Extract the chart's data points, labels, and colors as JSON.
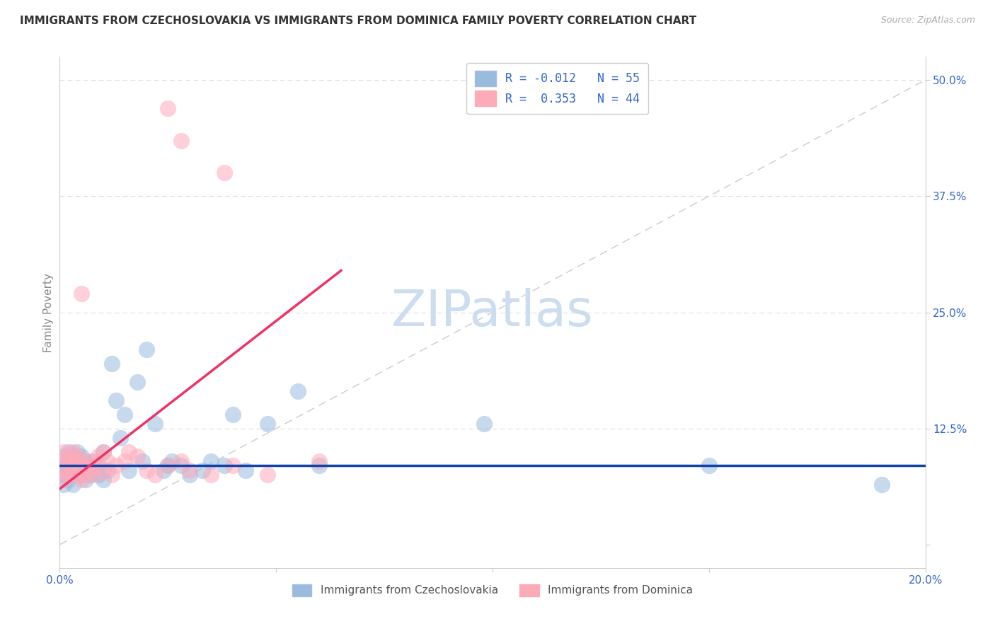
{
  "title": "IMMIGRANTS FROM CZECHOSLOVAKIA VS IMMIGRANTS FROM DOMINICA FAMILY POVERTY CORRELATION CHART",
  "source": "Source: ZipAtlas.com",
  "ylabel": "Family Poverty",
  "xlim": [
    0.0,
    0.2
  ],
  "ylim": [
    -0.025,
    0.525
  ],
  "xticks": [
    0.0,
    0.05,
    0.1,
    0.15,
    0.2
  ],
  "xticklabels": [
    "0.0%",
    "",
    "",
    "",
    "20.0%"
  ],
  "yticks": [
    0.0,
    0.125,
    0.25,
    0.375,
    0.5
  ],
  "yticklabels": [
    "",
    "12.5%",
    "25.0%",
    "37.5%",
    "50.0%"
  ],
  "legend_blue_label": "Immigrants from Czechoslovakia",
  "legend_pink_label": "Immigrants from Dominica",
  "color_blue": "#99BBDD",
  "color_pink": "#FFAABB",
  "line_blue": "#1144AA",
  "line_pink": "#EE3366",
  "diag_color": "#CCCCCC",
  "grid_color": "#DDDDDD",
  "watermark": "ZIPatlas",
  "watermark_color": "#CCDDEF",
  "blue_line_y0": 0.085,
  "blue_line_y1": 0.085,
  "pink_line_x0": 0.0,
  "pink_line_y0": 0.06,
  "pink_line_x1": 0.065,
  "pink_line_y1": 0.295,
  "blue_x": [
    0.001,
    0.001,
    0.001,
    0.001,
    0.002,
    0.002,
    0.002,
    0.002,
    0.003,
    0.003,
    0.003,
    0.003,
    0.004,
    0.004,
    0.004,
    0.005,
    0.005,
    0.005,
    0.006,
    0.006,
    0.006,
    0.007,
    0.007,
    0.008,
    0.008,
    0.009,
    0.009,
    0.01,
    0.01,
    0.011,
    0.012,
    0.013,
    0.014,
    0.015,
    0.016,
    0.018,
    0.019,
    0.02,
    0.022,
    0.024,
    0.025,
    0.026,
    0.028,
    0.03,
    0.033,
    0.035,
    0.038,
    0.04,
    0.043,
    0.048,
    0.055,
    0.06,
    0.098,
    0.15,
    0.19
  ],
  "blue_y": [
    0.085,
    0.075,
    0.095,
    0.065,
    0.08,
    0.09,
    0.07,
    0.1,
    0.085,
    0.075,
    0.095,
    0.065,
    0.08,
    0.09,
    0.1,
    0.085,
    0.075,
    0.095,
    0.07,
    0.08,
    0.09,
    0.085,
    0.075,
    0.08,
    0.09,
    0.085,
    0.075,
    0.1,
    0.07,
    0.08,
    0.195,
    0.155,
    0.115,
    0.14,
    0.08,
    0.175,
    0.09,
    0.21,
    0.13,
    0.08,
    0.085,
    0.09,
    0.085,
    0.075,
    0.08,
    0.09,
    0.085,
    0.14,
    0.08,
    0.13,
    0.165,
    0.085,
    0.13,
    0.085,
    0.065
  ],
  "pink_x": [
    0.001,
    0.001,
    0.001,
    0.001,
    0.002,
    0.002,
    0.002,
    0.003,
    0.003,
    0.003,
    0.004,
    0.004,
    0.004,
    0.005,
    0.005,
    0.005,
    0.006,
    0.006,
    0.007,
    0.007,
    0.008,
    0.008,
    0.009,
    0.01,
    0.01,
    0.011,
    0.012,
    0.013,
    0.015,
    0.016,
    0.018,
    0.02,
    0.022,
    0.025,
    0.028,
    0.03,
    0.035,
    0.04,
    0.048,
    0.06,
    0.025,
    0.028,
    0.038,
    0.005
  ],
  "pink_y": [
    0.09,
    0.08,
    0.1,
    0.07,
    0.085,
    0.095,
    0.075,
    0.09,
    0.08,
    0.1,
    0.085,
    0.075,
    0.095,
    0.08,
    0.09,
    0.07,
    0.085,
    0.075,
    0.08,
    0.09,
    0.075,
    0.085,
    0.095,
    0.1,
    0.08,
    0.09,
    0.075,
    0.085,
    0.09,
    0.1,
    0.095,
    0.08,
    0.075,
    0.085,
    0.09,
    0.08,
    0.075,
    0.085,
    0.075,
    0.09,
    0.47,
    0.435,
    0.4,
    0.27
  ]
}
